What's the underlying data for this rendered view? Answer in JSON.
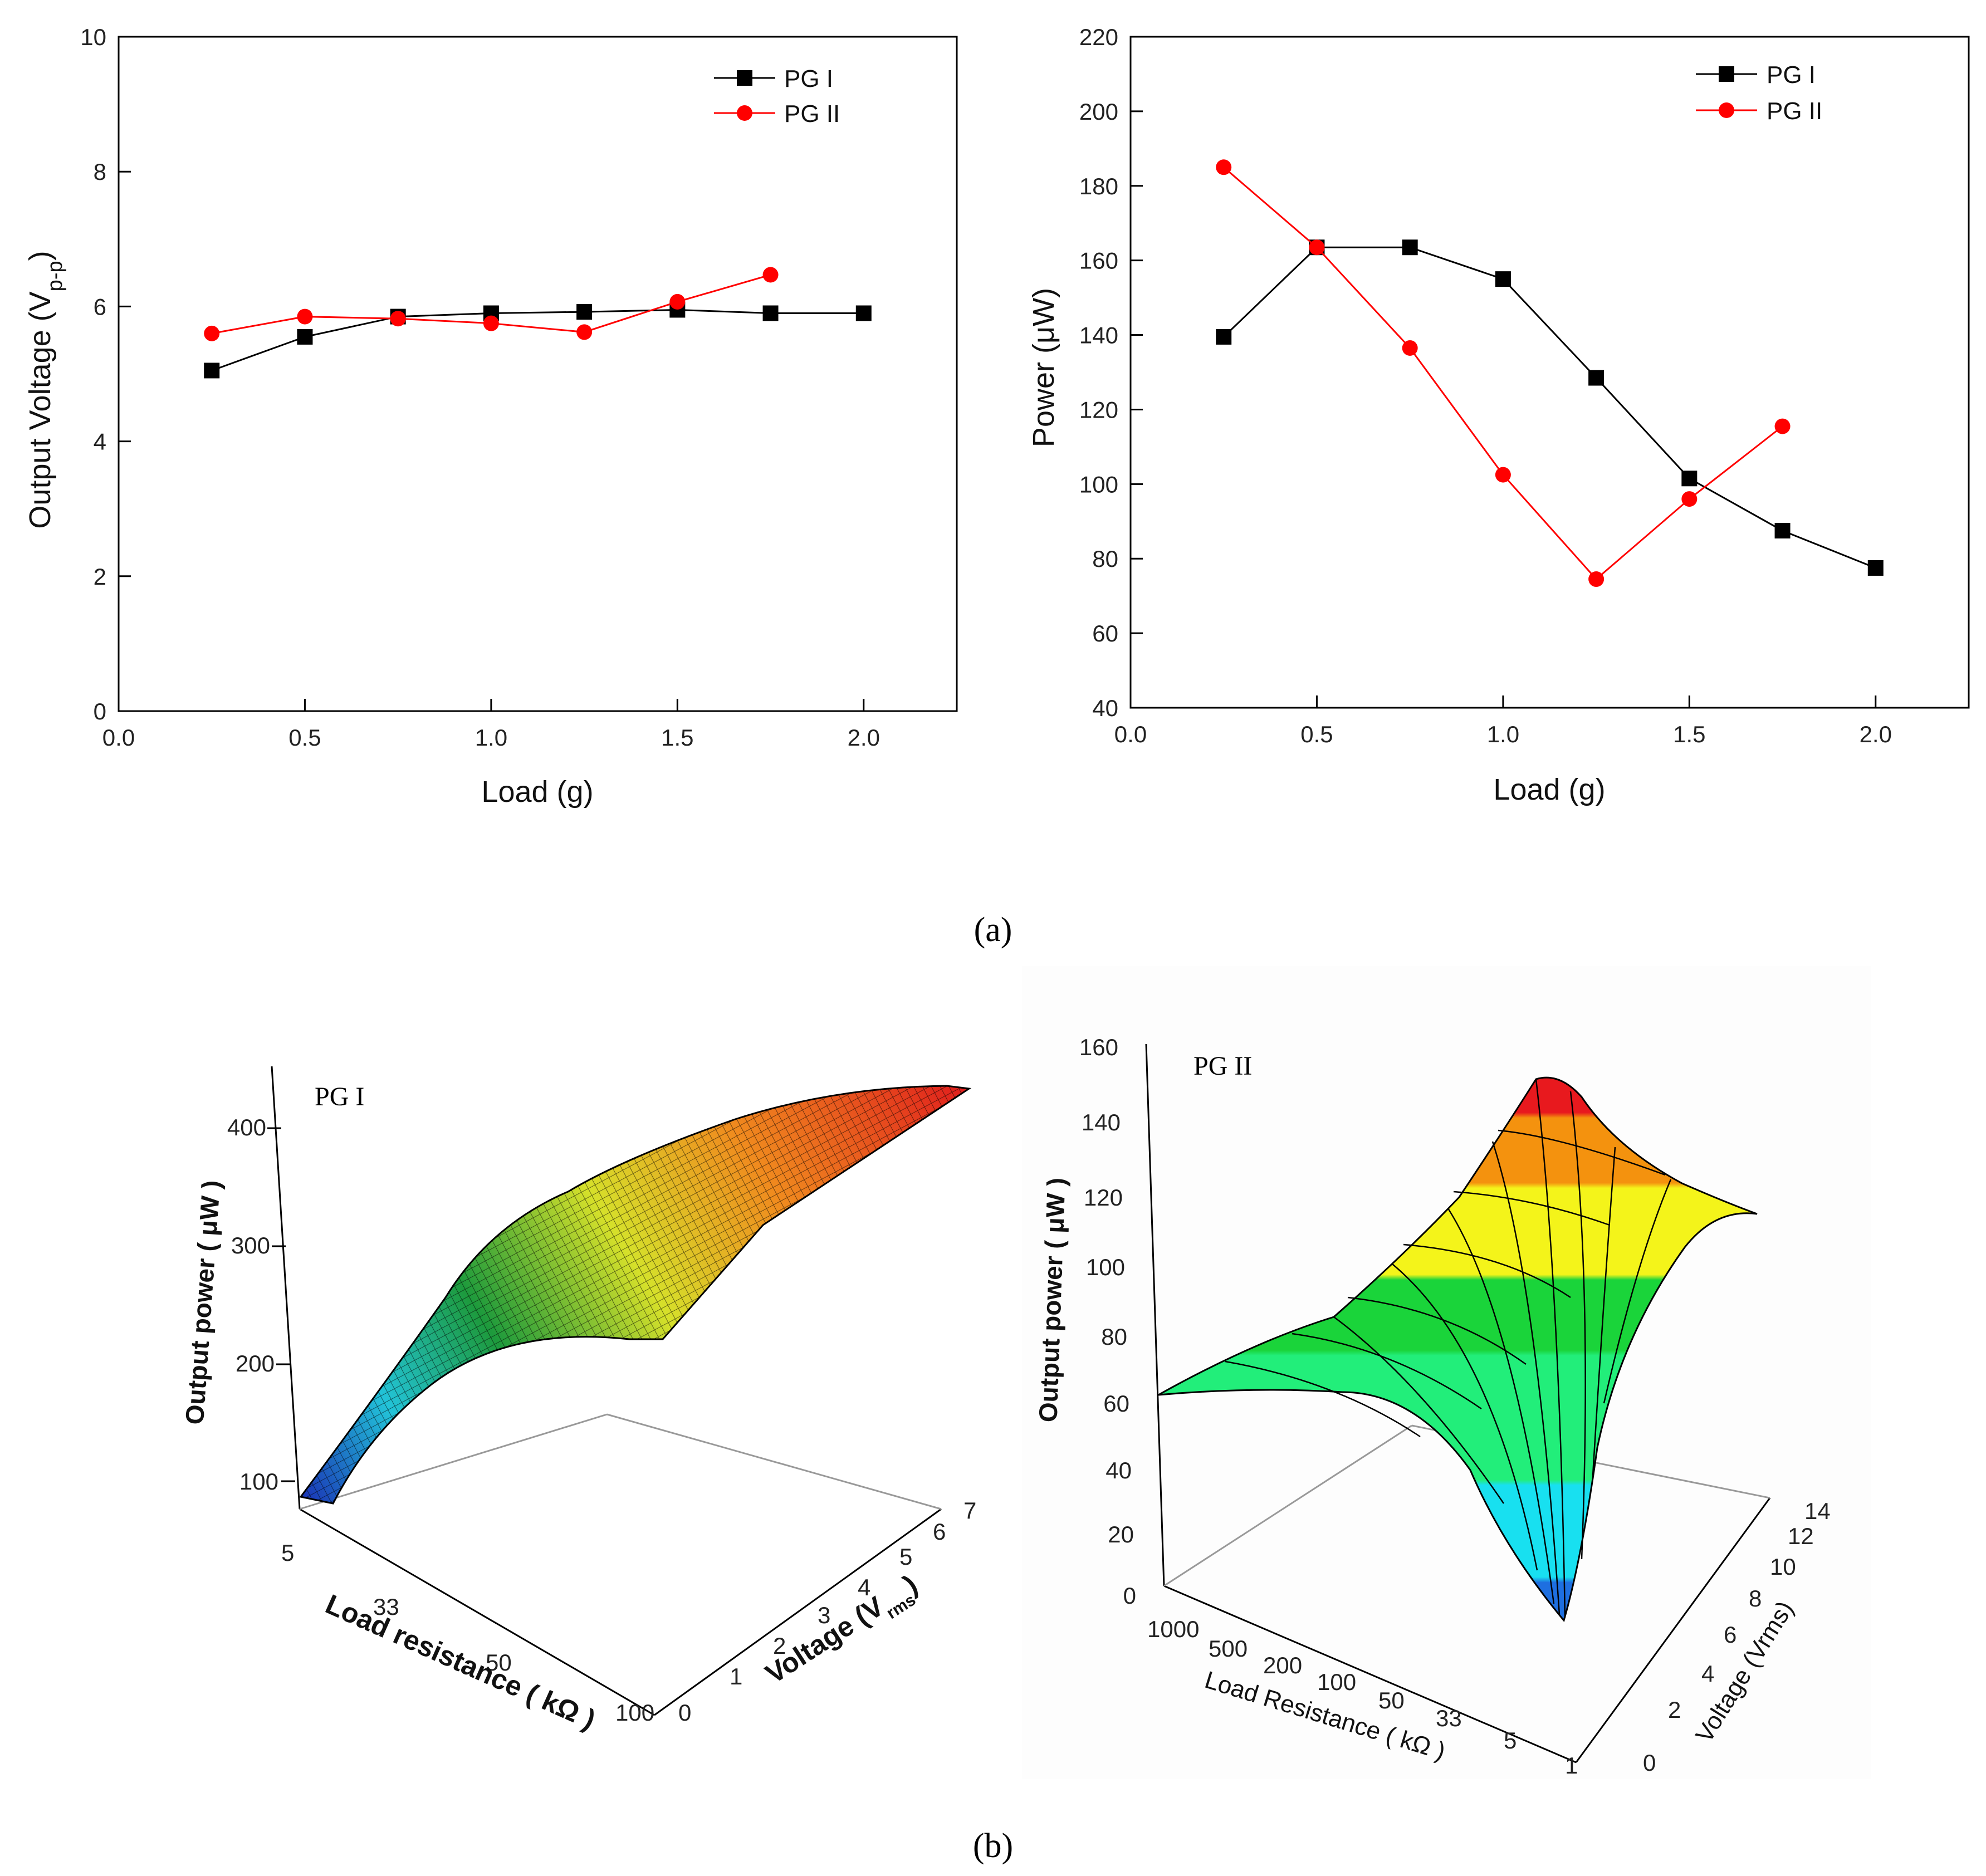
{
  "captions": {
    "a": "(a)",
    "b": "(b)"
  },
  "chart_data": [
    {
      "type": "line",
      "id": "voltage",
      "xlabel": "Load (g)",
      "ylabel_main": "Output Voltage (V",
      "ylabel_sub": "p-p",
      "ylabel_close": ")",
      "xlim": [
        0,
        2.25
      ],
      "ylim": [
        0,
        10
      ],
      "xticks": [
        0,
        0.5,
        1,
        1.5,
        2
      ],
      "yticks": [
        0,
        2,
        4,
        6,
        8,
        10
      ],
      "xtick_labels": [
        "0.0",
        "0.5",
        "1.0",
        "1.5",
        "2.0"
      ],
      "ytick_labels": [
        "0",
        "2",
        "4",
        "6",
        "8",
        "10"
      ],
      "legend_position": "top-right",
      "series": [
        {
          "name": "PG I",
          "color": "#000000",
          "marker": "square",
          "x": [
            0.25,
            0.5,
            0.75,
            1.0,
            1.25,
            1.5,
            1.75,
            2.0
          ],
          "y": [
            5.05,
            5.55,
            5.85,
            5.9,
            5.92,
            5.95,
            5.9,
            5.9
          ]
        },
        {
          "name": "PG II",
          "color": "#ff0000",
          "marker": "circle",
          "x": [
            0.25,
            0.5,
            0.75,
            1.0,
            1.25,
            1.5,
            1.75
          ],
          "y": [
            5.6,
            5.85,
            5.82,
            5.75,
            5.62,
            6.07,
            6.47
          ]
        }
      ]
    },
    {
      "type": "line",
      "id": "power",
      "xlabel": "Load (g)",
      "ylabel": "Power (μW)",
      "xlim": [
        0,
        2.25
      ],
      "ylim": [
        40,
        220
      ],
      "xticks": [
        0,
        0.5,
        1,
        1.5,
        2
      ],
      "yticks": [
        40,
        60,
        80,
        100,
        120,
        140,
        160,
        180,
        200,
        220
      ],
      "xtick_labels": [
        "0.0",
        "0.5",
        "1.0",
        "1.5",
        "2.0"
      ],
      "ytick_labels": [
        "40",
        "60",
        "80",
        "100",
        "120",
        "140",
        "160",
        "180",
        "200",
        "220"
      ],
      "legend_position": "top-right",
      "series": [
        {
          "name": "PG I",
          "color": "#000000",
          "marker": "square",
          "x": [
            0.25,
            0.5,
            0.75,
            1.0,
            1.25,
            1.5,
            1.75,
            2.0
          ],
          "y": [
            139.5,
            163.5,
            163.5,
            155,
            128.5,
            101.5,
            87.5,
            77.5
          ]
        },
        {
          "name": "PG II",
          "color": "#ff0000",
          "marker": "circle",
          "x": [
            0.25,
            0.5,
            0.75,
            1.0,
            1.25,
            1.5,
            1.75
          ],
          "y": [
            185,
            163.5,
            136.5,
            102.5,
            74.5,
            96,
            115.5
          ]
        }
      ]
    },
    {
      "type": "heatmap",
      "id": "surface-pg1",
      "title": "PG I",
      "zlabel": "Output power ( μW )",
      "xlabel": "Load resistance ( kΩ )",
      "ylabel_main": "Voltage (V",
      "ylabel_sub": "rms",
      "ylabel_close": ")",
      "zticks": [
        "100",
        "200",
        "300",
        "400"
      ],
      "xticks": [
        "5",
        "33",
        "50",
        "100"
      ],
      "yticks": [
        "0",
        "1",
        "2",
        "3",
        "4",
        "5",
        "6",
        "7"
      ]
    },
    {
      "type": "heatmap",
      "id": "surface-pg2",
      "title": "PG II",
      "zlabel": "Output power ( μW )",
      "xlabel": "Load Resistance ( kΩ )",
      "ylabel": "Voltage (Vrms)",
      "zticks": [
        "0",
        "20",
        "40",
        "60",
        "80",
        "100",
        "120",
        "140",
        "160"
      ],
      "xticks": [
        "1000",
        "500",
        "200",
        "100",
        "50",
        "33",
        "5",
        "1"
      ],
      "yticks": [
        "0",
        "2",
        "4",
        "6",
        "8",
        "10",
        "12",
        "14"
      ]
    }
  ]
}
